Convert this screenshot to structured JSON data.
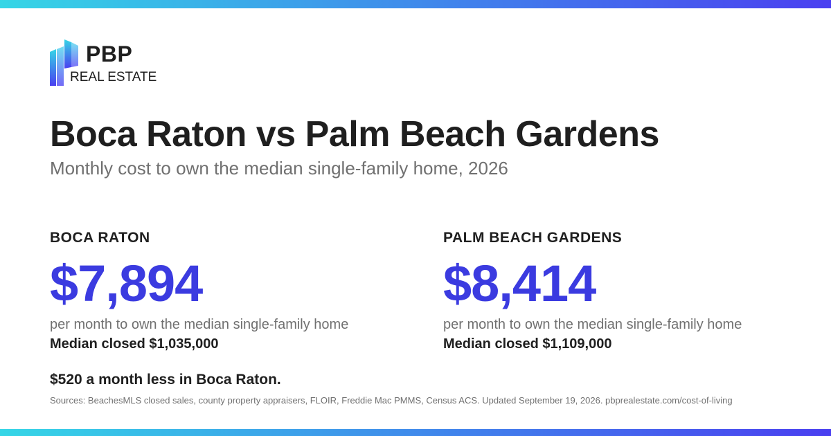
{
  "colors": {
    "gradient_start": "#35d6e6",
    "gradient_end": "#4a3ff0",
    "accent_price": "#3b3be0",
    "text_dark": "#1f1f1f",
    "text_muted": "#707070"
  },
  "logo": {
    "icon": "pbp-building-logo-icon",
    "name": "PBP",
    "sub": "REAL ESTATE"
  },
  "title": "Boca Raton vs Palm Beach Gardens",
  "subtitle": "Monthly cost to own the median single-family home, 2026",
  "cities": [
    {
      "name": "BOCA RATON",
      "monthly_cost": "$7,894",
      "note": "per month to own the median single-family home",
      "median": "Median closed $1,035,000"
    },
    {
      "name": "PALM BEACH GARDENS",
      "monthly_cost": "$8,414",
      "note": "per month to own the median single-family home",
      "median": "Median closed $1,109,000"
    }
  ],
  "difference": "$520 a month less in Boca Raton.",
  "sources": "Sources: BeachesMLS closed sales, county property appraisers, FLOIR, Freddie Mac PMMS, Census ACS. Updated September 19, 2026. pbprealestate.com/cost-of-living"
}
